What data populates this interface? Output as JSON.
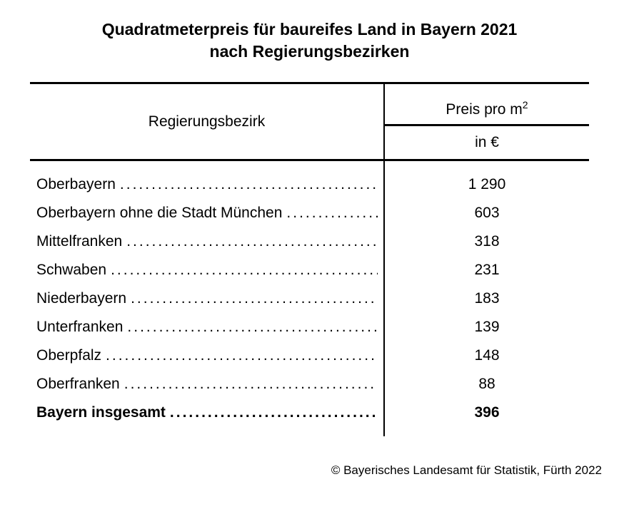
{
  "title": {
    "line1": "Quadratmeterpreis für baureifes Land in Bayern 2021",
    "line2": "nach Regierungsbezirken"
  },
  "table": {
    "header": {
      "left": "Regierungsbezirk",
      "price_label": "Preis pro m",
      "price_sup": "2",
      "unit": "in €"
    },
    "rows": [
      {
        "label": "Oberbayern",
        "value": "1 290"
      },
      {
        "label": "Oberbayern ohne die Stadt München",
        "value": "603"
      },
      {
        "label": "Mittelfranken",
        "value": "318"
      },
      {
        "label": "Schwaben",
        "value": "231"
      },
      {
        "label": "Niederbayern",
        "value": "183"
      },
      {
        "label": "Unterfranken",
        "value": "139"
      },
      {
        "label": "Oberpfalz",
        "value": "148"
      },
      {
        "label": "Oberfranken",
        "value": "88"
      },
      {
        "label": "Bayern insgesamt",
        "value": "396"
      }
    ]
  },
  "footer": {
    "copyright": "© Bayerisches Landesamt für Statistik, Fürth 2022"
  },
  "colors": {
    "text": "#000000",
    "background": "#ffffff",
    "rules": "#000000"
  },
  "chart_data": {
    "type": "table",
    "title": "Quadratmeterpreis für baureifes Land in Bayern 2021 nach Regierungsbezirken",
    "columns": [
      "Regierungsbezirk",
      "Preis pro m2 in €"
    ],
    "categories": [
      "Oberbayern",
      "Oberbayern ohne die Stadt München",
      "Mittelfranken",
      "Schwaben",
      "Niederbayern",
      "Unterfranken",
      "Oberpfalz",
      "Oberfranken",
      "Bayern insgesamt"
    ],
    "values": [
      1290,
      603,
      318,
      231,
      183,
      139,
      148,
      88,
      396
    ],
    "unit": "EUR per square meter",
    "source": "© Bayerisches Landesamt für Statistik, Fürth 2022"
  }
}
